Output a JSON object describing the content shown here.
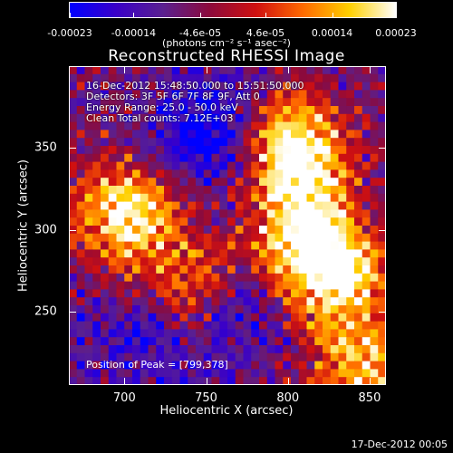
{
  "colorbar": {
    "tick_labels": [
      "-0.00023",
      "-0.00014",
      "-4.6e-05",
      "4.6e-05",
      "0.00014",
      "0.00023"
    ],
    "range": [
      -0.00023,
      0.00023
    ],
    "unit_label": "(photons cm⁻² s⁻¹ asec⁻²)",
    "colors": [
      "#0000ff",
      "#3a00c8",
      "#5a2090",
      "#8c0a3c",
      "#d01010",
      "#ff6a00",
      "#ffd000",
      "#ffffff"
    ]
  },
  "title": "Reconstructed RHESSI Image",
  "info": {
    "line1": "16-Dec-2012 15:48:50.000 to 15:51:50.000",
    "line2": "Detectors: 3F 5F 6F 7F 8F 9F, Att 0",
    "line3": "Energy Range: 25.0 - 50.0 keV",
    "line4": "Clean     Total counts: 7.12E+03"
  },
  "peak_text": "Position of Peak = [799,378]",
  "timestamp": "17-Dec-2012 00:05",
  "chart_data": {
    "type": "heatmap",
    "xlabel": "Heliocentric X (arcsec)",
    "ylabel": "Heliocentric Y (arcsec)",
    "xlim": [
      666,
      860
    ],
    "ylim": [
      205,
      400
    ],
    "x_ticks": [
      700,
      750,
      800,
      850
    ],
    "y_ticks": [
      250,
      300,
      350
    ],
    "x_tick_labels": [
      "700",
      "750",
      "800",
      "850"
    ],
    "y_tick_labels": [
      "250",
      "300",
      "350"
    ],
    "peak_position": [
      799,
      378
    ],
    "grid_size": 40,
    "bright_regions": [
      {
        "x": 805,
        "y": 350,
        "level": 1.0
      },
      {
        "x": 810,
        "y": 300,
        "level": 0.9
      },
      {
        "x": 830,
        "y": 270,
        "level": 0.85
      },
      {
        "x": 700,
        "y": 310,
        "level": 0.9
      },
      {
        "x": 740,
        "y": 265,
        "level": 0.6
      },
      {
        "x": 845,
        "y": 215,
        "level": 0.7
      }
    ],
    "dark_regions": [
      {
        "x": 750,
        "y": 360,
        "level": -1.0
      },
      {
        "x": 765,
        "y": 250,
        "level": -0.7
      },
      {
        "x": 710,
        "y": 235,
        "level": -0.6
      }
    ]
  }
}
